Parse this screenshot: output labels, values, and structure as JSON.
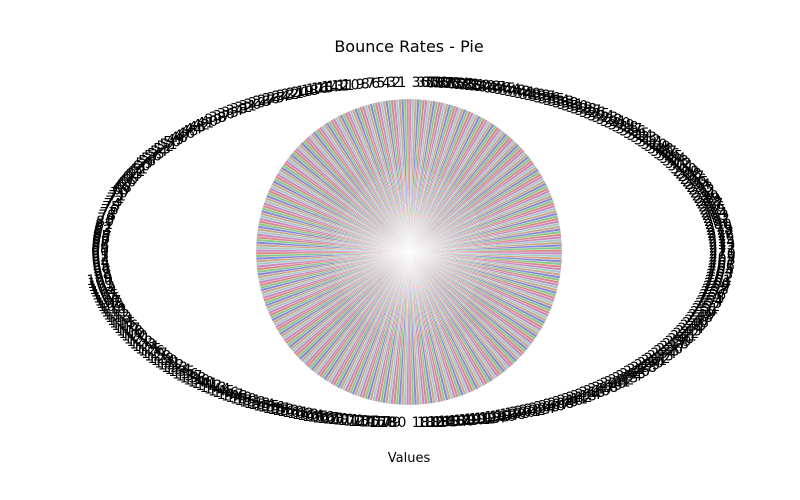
{
  "chart_data": {
    "type": "pie",
    "title": "Bounce Rates - Pie",
    "xlabel": "Values",
    "ylabel": "",
    "aspect": "elliptical, wider than tall",
    "start_angle_deg": 90,
    "direction": "counterclockwise",
    "slice_count": 360,
    "slice_value_each": 1,
    "slices_equal": true,
    "labels_outside": true,
    "percent_labels_inside": true,
    "edge_color": "#ffffff",
    "palette": [
      "#d98a8a",
      "#8ac98a",
      "#8a8ad9",
      "#c9a98a",
      "#a9c9c9",
      "#c98ac0"
    ]
  }
}
